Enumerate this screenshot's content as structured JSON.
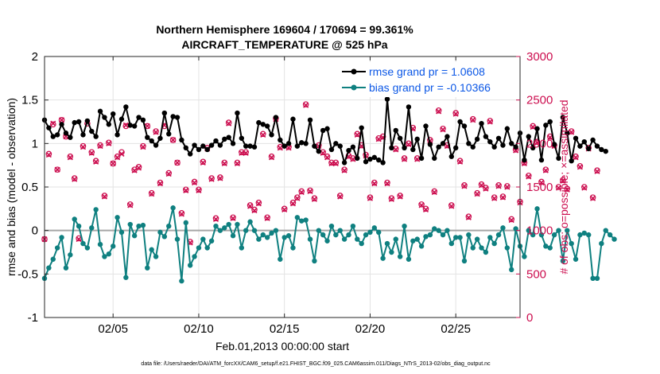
{
  "chart_data": {
    "type": "line",
    "title": "Northern Hemisphere 169604 / 170694 = 99.361%",
    "subtitle": "AIRCRAFT_TEMPERATURE @ 525 hPa",
    "xlabel": "Feb.01,2013 00:00:00 start",
    "ylabel": "rmse and bias (model - observation)",
    "y2label": "# of obs: o=possible; ×=assimilated",
    "xlim": [
      1,
      28.75
    ],
    "ylim": [
      -1,
      2
    ],
    "y2lim": [
      0,
      3000
    ],
    "xticks": [
      5,
      10,
      15,
      20,
      25
    ],
    "xtick_labels": [
      "02/05",
      "02/10",
      "02/15",
      "02/20",
      "02/25"
    ],
    "yticks": [
      -1,
      -0.5,
      0,
      0.5,
      1,
      1.5,
      2
    ],
    "ytick_labels": [
      "-1",
      "-0.5",
      "0",
      "0.5",
      "1",
      "1.5",
      "2"
    ],
    "y2ticks": [
      0,
      500,
      1000,
      1500,
      2000,
      2500,
      3000
    ],
    "y2tick_labels": [
      "0",
      "500",
      "1000",
      "1500",
      "2000",
      "2500",
      "3000"
    ],
    "legend_position": "top-right",
    "footnote": "data file: /Users/raeder/DAI/ATM_forcXX/CAM6_setup/f.e21.FHIST_BGC.f09_025.CAM6assim.011/Diags_NTrS_2013-02/obs_diag_output.nc",
    "series": [
      {
        "name": "rmse grand pr = 1.0608",
        "color": "#000000",
        "x_start": 1,
        "x_step": 0.25,
        "values": [
          1.27,
          1.18,
          1.08,
          1.1,
          1.22,
          1.12,
          1.07,
          1.24,
          1.25,
          1.1,
          1.26,
          1.14,
          1.08,
          1.37,
          1.3,
          1.22,
          1.34,
          1.1,
          1.28,
          1.42,
          1.21,
          1.2,
          1.3,
          1.27,
          1.07,
          1.03,
          0.98,
          1.06,
          1.35,
          1.11,
          1.31,
          1.3,
          1.04,
          0.95,
          0.88,
          0.98,
          0.93,
          0.97,
          0.93,
          0.98,
          1.03,
          0.98,
          1.05,
          1.07,
          1.0,
          1.35,
          1.06,
          0.97,
          0.97,
          0.96,
          1.24,
          1.22,
          1.2,
          1.1,
          1.3,
          1.04,
          0.97,
          1.0,
          1.28,
          0.97,
          1.01,
          1.0,
          1.27,
          0.97,
          0.91,
          1.15,
          1.17,
          0.93,
          1.0,
          0.97,
          0.78,
          0.92,
          0.96,
          0.83,
          1.18,
          0.79,
          0.82,
          0.84,
          0.81,
          0.78,
          1.51,
          0.95,
          1.15,
          1.06,
          0.95,
          1.42,
          0.93,
          1.05,
          0.83,
          1.2,
          0.99,
          0.83,
          0.96,
          1.0,
          1.08,
          0.85,
          0.95,
          1.25,
          1.2,
          1.0,
          0.96,
          1.05,
          1.23,
          1.08,
          1.02,
          0.96,
          1.06,
          0.98,
          1.17,
          1.0,
          0.96,
          1.12,
          0.81,
          1.08,
          0.95,
          1.17,
          0.81,
          1.21,
          1.25,
          0.99,
          0.83,
          1.3,
          1.12,
          0.8,
          1.06,
          0.97,
          1.02,
          0.94,
          1.04,
          0.97,
          0.93,
          0.91
        ]
      },
      {
        "name": "bias grand pr = -0.10366",
        "color": "#0f8080",
        "x_start": 1,
        "x_step": 0.25,
        "values": [
          -0.55,
          -0.43,
          -0.33,
          -0.2,
          -0.08,
          -0.43,
          -0.28,
          0.13,
          0.05,
          -0.15,
          -0.2,
          0.03,
          0.24,
          -0.16,
          -0.3,
          -0.27,
          -0.18,
          0.15,
          -0.02,
          -0.54,
          0.07,
          -0.06,
          0.05,
          0.06,
          -0.43,
          -0.22,
          -0.3,
          -0.02,
          -0.07,
          0.05,
          0.26,
          -0.1,
          -0.58,
          0.09,
          -0.4,
          -0.3,
          -0.2,
          -0.1,
          -0.2,
          -0.12,
          0.05,
          0.0,
          0.03,
          0.07,
          -0.06,
          0.07,
          -0.2,
          0.0,
          0.1,
          0.0,
          -0.1,
          -0.05,
          -0.08,
          -0.03,
          0.0,
          -0.33,
          -0.08,
          -0.06,
          -0.2,
          0.15,
          0.11,
          0.12,
          -0.1,
          -0.35,
          0.0,
          -0.05,
          -0.12,
          0.05,
          -0.05,
          0.0,
          -0.1,
          -0.05,
          0.05,
          -0.1,
          -0.15,
          -0.05,
          -0.02,
          0.03,
          -0.02,
          -0.32,
          -0.15,
          -0.25,
          -0.1,
          -0.3,
          0.05,
          -0.33,
          -0.12,
          -0.1,
          -0.18,
          -0.07,
          -0.05,
          0.02,
          0.0,
          -0.05,
          0.0,
          -0.15,
          -0.08,
          -0.08,
          -0.35,
          -0.05,
          -0.2,
          -0.1,
          -0.2,
          -0.25,
          -0.08,
          -0.15,
          -0.05,
          0.03,
          -0.2,
          -0.45,
          0.02,
          -0.18,
          -0.3,
          0.0,
          -0.05,
          0.25,
          -0.05,
          -0.18,
          -0.2,
          -0.05,
          0.0,
          -0.35,
          0.0,
          -0.15,
          -0.33,
          -0.05,
          -0.03,
          -0.05,
          -0.55,
          -0.55,
          -0.15,
          0.0,
          -0.05,
          -0.1
        ]
      },
      {
        "name": "# of obs possible",
        "marker": "circle",
        "color": "#cc0e4f",
        "axis": "right",
        "x_start": 1,
        "x_step": 0.25,
        "values": [
          900,
          1880,
          2220,
          1700,
          2270,
          2080,
          1850,
          1600,
          910,
          1970,
          2230,
          1900,
          1800,
          1980,
          1400,
          2010,
          1770,
          1850,
          1900,
          2200,
          1300,
          1700,
          1730,
          1970,
          2200,
          1430,
          2140,
          1550,
          2200,
          1660,
          2040,
          1780,
          1200,
          1470,
          870,
          1560,
          1470,
          1790,
          1950,
          1600,
          1140,
          1610,
          1780,
          2240,
          1150,
          1780,
          1900,
          1900,
          1290,
          1240,
          1320,
          2110,
          1150,
          1850,
          2290,
          1960,
          1250,
          1960,
          1320,
          1380,
          1450,
          2450,
          1460,
          1370,
          1980,
          1900,
          1850,
          1780,
          1780,
          1400,
          1700,
          1860,
          1830,
          2110,
          1980,
          1870,
          1380,
          1550,
          2060,
          2080,
          1550,
          1370,
          1940,
          1400,
          1830,
          2000,
          2180,
          1830,
          1300,
          1250,
          2040,
          1450,
          2380,
          2170,
          1980,
          1290,
          2350,
          1800,
          1520,
          1160,
          2280,
          1430,
          1530,
          1490,
          2260,
          1380,
          1520,
          1390,
          1510,
          1130,
          1930,
          1330,
          1780,
          1630,
          2200,
          2020,
          1560,
          1700,
          2080,
          1980,
          1500,
          1580,
          1480,
          2140,
          1850,
          1740,
          1500,
          1950,
          1380,
          1690
        ]
      },
      {
        "name": "# of obs assimilated",
        "marker": "x",
        "color": "#cc0e4f",
        "axis": "right",
        "x_start": 1,
        "x_step": 0.25,
        "values": [
          900,
          1870,
          2230,
          1700,
          2270,
          2080,
          1840,
          1590,
          900,
          1960,
          2240,
          1890,
          1790,
          1970,
          1390,
          2000,
          1770,
          1840,
          1880,
          2210,
          1290,
          1690,
          1720,
          1960,
          2200,
          1420,
          2130,
          1540,
          2210,
          1650,
          2040,
          1780,
          1190,
          1460,
          860,
          1550,
          1460,
          1780,
          1940,
          1590,
          1130,
          1600,
          1770,
          2230,
          1140,
          1770,
          1890,
          1890,
          1280,
          1230,
          1310,
          2100,
          1140,
          1840,
          2280,
          1950,
          1240,
          1950,
          1310,
          1370,
          1440,
          2440,
          1450,
          1360,
          1970,
          1890,
          1840,
          1770,
          1770,
          1390,
          1690,
          1850,
          1820,
          2100,
          1970,
          1860,
          1370,
          1540,
          2050,
          2070,
          1540,
          1360,
          1930,
          1390,
          1820,
          1990,
          2170,
          1820,
          1290,
          1240,
          2030,
          1440,
          2370,
          2160,
          1970,
          1280,
          2340,
          1790,
          1510,
          1150,
          2270,
          1420,
          1520,
          1480,
          2250,
          1370,
          1510,
          1380,
          1500,
          1120,
          1920,
          1320,
          1770,
          1620,
          2190,
          2010,
          1550,
          1690,
          2070,
          1970,
          1490,
          1570,
          1470,
          2130,
          1840,
          1730,
          1490,
          1940,
          1370,
          1680
        ]
      }
    ]
  },
  "colors": {
    "rmse": "#000000",
    "bias": "#0f8080",
    "obs": "#cc0e4f",
    "legend_text": "#0b57e6"
  }
}
